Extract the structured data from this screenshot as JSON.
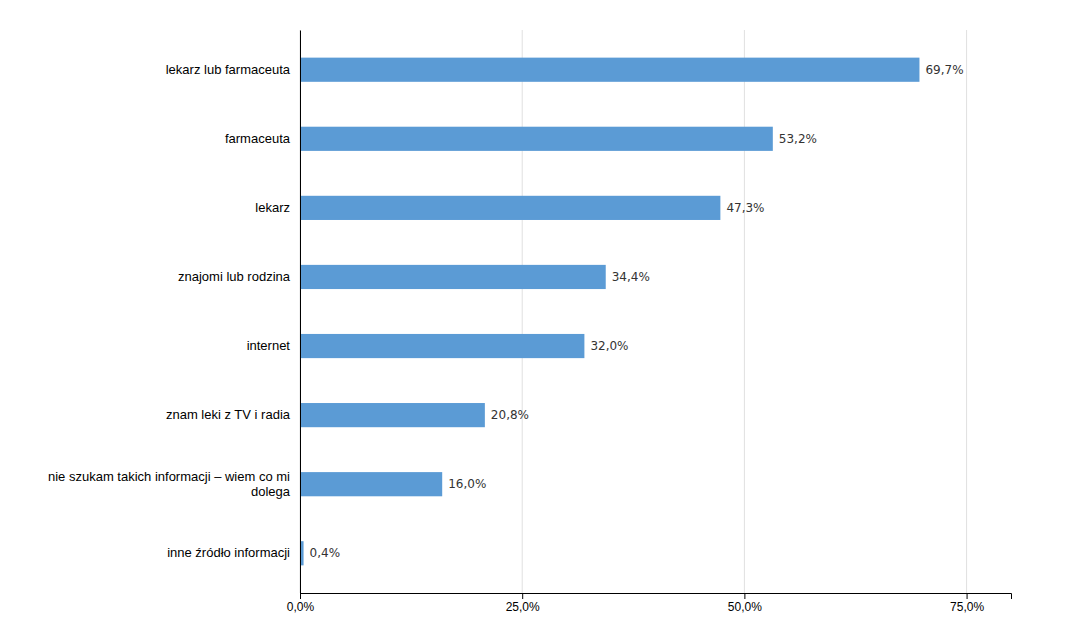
{
  "chart_data": {
    "type": "bar",
    "orientation": "horizontal",
    "categories": [
      "inne źródło informacji",
      "nie szukam takich informacji – wiem co mi\ndolega",
      "znam leki z TV i radia",
      "internet",
      "znajomi lub rodzina",
      "lekarz",
      "farmaceuta",
      "lekarz lub farmaceuta"
    ],
    "values": [
      0.4,
      16.0,
      20.8,
      32.0,
      34.4,
      47.3,
      53.2,
      69.7
    ],
    "value_labels": [
      "0,4%",
      "16,0%",
      "20,8%",
      "32,0%",
      "34,4%",
      "47,3%",
      "53,2%",
      "69,7%"
    ],
    "data_labels": true,
    "color": "#5B9BD5",
    "xlim": [
      0,
      80
    ],
    "xticks": [
      {
        "value": 0,
        "label": "0,0%"
      },
      {
        "value": 25,
        "label": "25,0%"
      },
      {
        "value": 50,
        "label": "50,0%"
      },
      {
        "value": 75,
        "label": "75,0%"
      }
    ],
    "grid": true
  }
}
